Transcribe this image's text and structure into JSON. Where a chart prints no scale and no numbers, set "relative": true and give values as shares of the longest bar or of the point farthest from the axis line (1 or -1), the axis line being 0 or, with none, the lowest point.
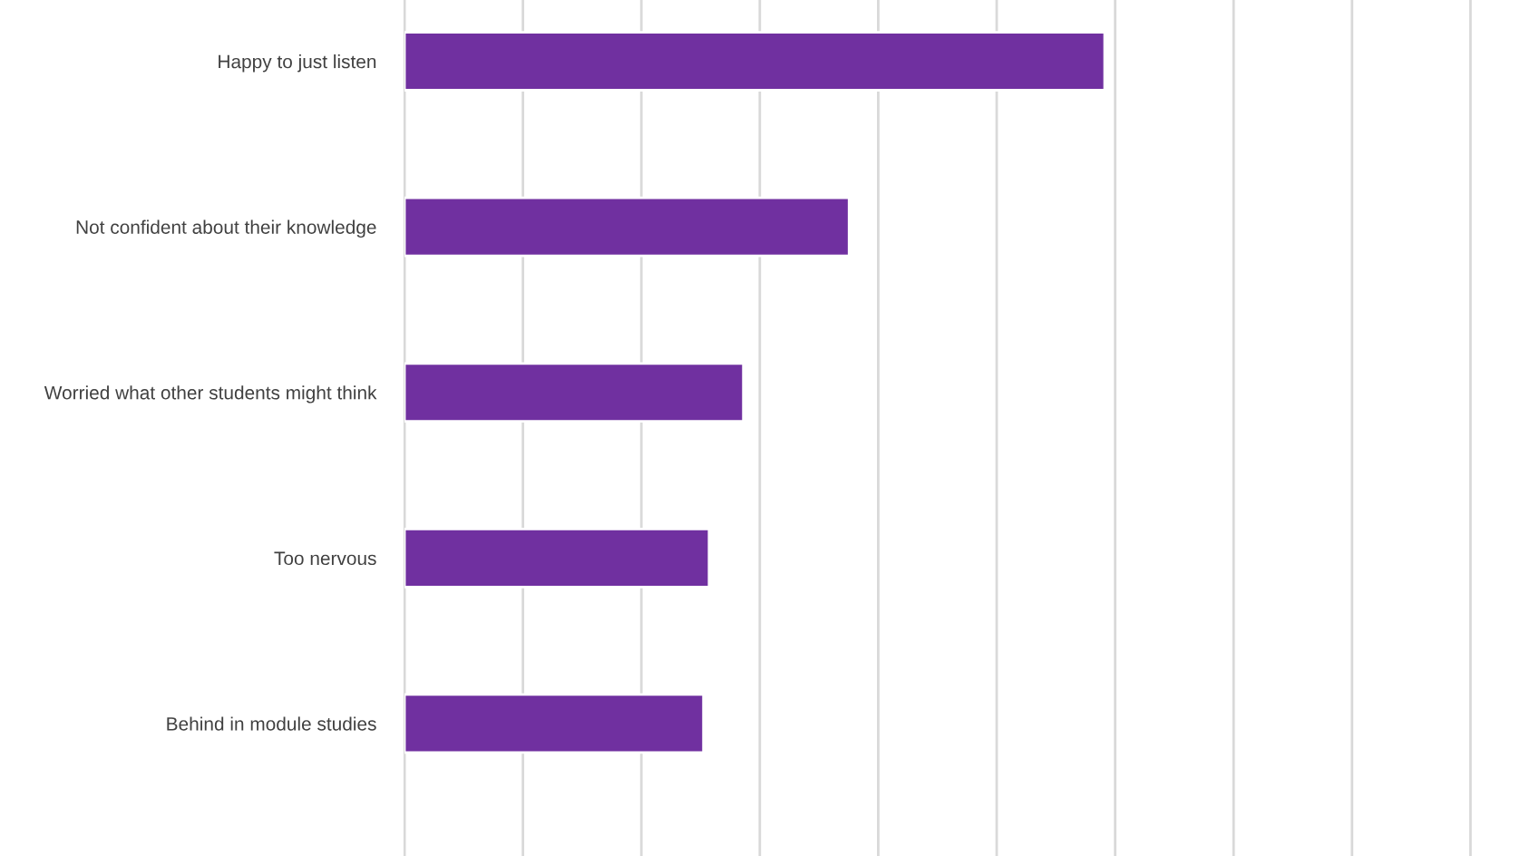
{
  "chart_data": {
    "type": "bar",
    "orientation": "horizontal",
    "relative": true,
    "grid": "x",
    "categories": [
      "Happy to just listen",
      "Not confident about their knowledge",
      "Worried what other students might think",
      "Too nervous",
      "Behind in module studies"
    ],
    "values": [
      1,
      0.635,
      0.484,
      0.435,
      0.427
    ],
    "color": "#7030a0"
  }
}
